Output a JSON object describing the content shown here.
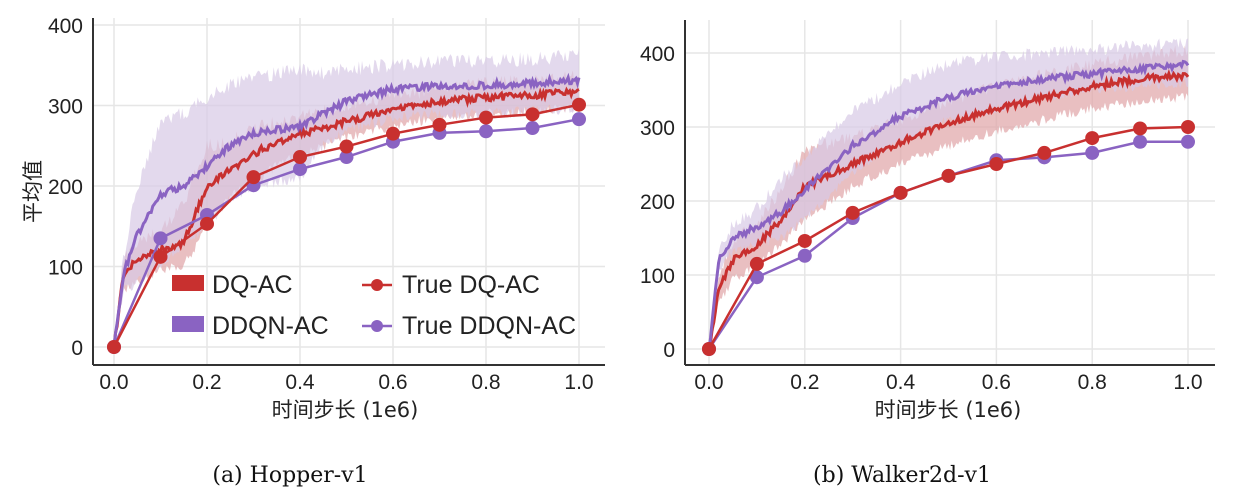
{
  "colors": {
    "dq": "#c8302f",
    "ddqn": "#8a63c2",
    "dq_band": "#e0a4a6",
    "ddqn_band": "#d7c9e6",
    "grid": "#e6e6e6"
  },
  "chart_data": [
    {
      "type": "line",
      "caption": "(a) Hopper-v1",
      "xlabel": "时间步长 (1e6)",
      "ylabel": "平均值",
      "xlim": [
        0,
        1
      ],
      "ylim": [
        0,
        400
      ],
      "grid": true,
      "legend_placement": "bottom-right",
      "xticks": [
        "0.0",
        "0.2",
        "0.4",
        "0.6",
        "0.8",
        "1.0"
      ],
      "yticks": [
        "0",
        "100",
        "200",
        "300",
        "400"
      ],
      "series": [
        {
          "name": "DQ-AC",
          "kind": "band",
          "x": [
            0,
            0.02,
            0.05,
            0.1,
            0.15,
            0.2,
            0.25,
            0.3,
            0.35,
            0.4,
            0.5,
            0.6,
            0.7,
            0.8,
            0.9,
            1.0
          ],
          "values": [
            0,
            90,
            110,
            120,
            130,
            200,
            220,
            240,
            255,
            265,
            280,
            295,
            305,
            310,
            312,
            318
          ],
          "lower": [
            0,
            70,
            80,
            95,
            100,
            150,
            185,
            205,
            225,
            240,
            260,
            275,
            285,
            290,
            292,
            298
          ],
          "upper": [
            0,
            110,
            130,
            145,
            180,
            250,
            255,
            270,
            280,
            285,
            300,
            312,
            320,
            328,
            330,
            338
          ]
        },
        {
          "name": "DDQN-AC",
          "kind": "band",
          "x": [
            0,
            0.02,
            0.05,
            0.1,
            0.15,
            0.2,
            0.25,
            0.3,
            0.35,
            0.4,
            0.45,
            0.5,
            0.6,
            0.7,
            0.8,
            0.9,
            1.0
          ],
          "values": [
            0,
            90,
            140,
            190,
            200,
            225,
            250,
            265,
            270,
            275,
            290,
            305,
            320,
            325,
            325,
            328,
            332
          ],
          "lower": [
            0,
            70,
            80,
            100,
            130,
            150,
            185,
            200,
            205,
            210,
            250,
            270,
            285,
            290,
            290,
            293,
            297
          ],
          "upper": [
            0,
            110,
            200,
            280,
            290,
            310,
            325,
            335,
            340,
            345,
            340,
            345,
            350,
            355,
            355,
            358,
            362
          ]
        },
        {
          "name": "True DQ-AC",
          "kind": "marker",
          "x": [
            0,
            0.1,
            0.2,
            0.3,
            0.4,
            0.5,
            0.6,
            0.7,
            0.8,
            0.9,
            1.0
          ],
          "values": [
            0,
            112,
            153,
            211,
            236,
            249,
            265,
            276,
            285,
            289,
            301
          ]
        },
        {
          "name": "True DDQN-AC",
          "kind": "marker",
          "x": [
            0,
            0.1,
            0.2,
            0.3,
            0.4,
            0.5,
            0.6,
            0.7,
            0.8,
            0.9,
            1.0
          ],
          "values": [
            0,
            135,
            164,
            201,
            221,
            236,
            255,
            266,
            268,
            272,
            283
          ]
        }
      ]
    },
    {
      "type": "line",
      "caption": "(b) Walker2d-v1",
      "xlabel": "时间步长 (1e6)",
      "ylabel": "",
      "xlim": [
        0,
        1
      ],
      "ylim": [
        0,
        430
      ],
      "grid": true,
      "xticks": [
        "0.0",
        "0.2",
        "0.4",
        "0.6",
        "0.8",
        "1.0"
      ],
      "yticks": [
        "0",
        "100",
        "200",
        "300",
        "400"
      ],
      "series": [
        {
          "name": "DQ-AC",
          "kind": "band",
          "x": [
            0,
            0.02,
            0.05,
            0.1,
            0.15,
            0.2,
            0.3,
            0.4,
            0.5,
            0.6,
            0.7,
            0.8,
            0.9,
            1.0
          ],
          "values": [
            0,
            80,
            120,
            140,
            175,
            220,
            250,
            280,
            305,
            325,
            340,
            355,
            365,
            370
          ],
          "lower": [
            0,
            60,
            95,
            115,
            140,
            175,
            220,
            250,
            275,
            295,
            310,
            325,
            335,
            340
          ],
          "upper": [
            0,
            100,
            145,
            170,
            215,
            270,
            285,
            310,
            335,
            355,
            370,
            385,
            395,
            405
          ]
        },
        {
          "name": "DDQN-AC",
          "kind": "band",
          "x": [
            0,
            0.02,
            0.05,
            0.1,
            0.15,
            0.2,
            0.3,
            0.4,
            0.5,
            0.6,
            0.7,
            0.8,
            0.9,
            1.0
          ],
          "values": [
            0,
            120,
            150,
            165,
            185,
            215,
            275,
            315,
            340,
            355,
            365,
            372,
            378,
            385
          ],
          "lower": [
            0,
            105,
            130,
            140,
            150,
            175,
            240,
            280,
            310,
            325,
            340,
            350,
            355,
            360
          ],
          "upper": [
            0,
            135,
            170,
            190,
            230,
            260,
            320,
            360,
            385,
            395,
            400,
            405,
            410,
            412
          ]
        },
        {
          "name": "True DQ-AC",
          "kind": "marker",
          "x": [
            0,
            0.1,
            0.2,
            0.3,
            0.4,
            0.5,
            0.6,
            0.7,
            0.8,
            0.9,
            1.0
          ],
          "values": [
            0,
            115,
            146,
            184,
            211,
            234,
            250,
            265,
            285,
            298,
            300
          ]
        },
        {
          "name": "True DDQN-AC",
          "kind": "marker",
          "x": [
            0,
            0.1,
            0.2,
            0.3,
            0.4,
            0.5,
            0.6,
            0.7,
            0.8,
            0.9,
            1.0
          ],
          "values": [
            0,
            97,
            126,
            177,
            211,
            234,
            255,
            259,
            265,
            280,
            280
          ]
        }
      ]
    }
  ]
}
